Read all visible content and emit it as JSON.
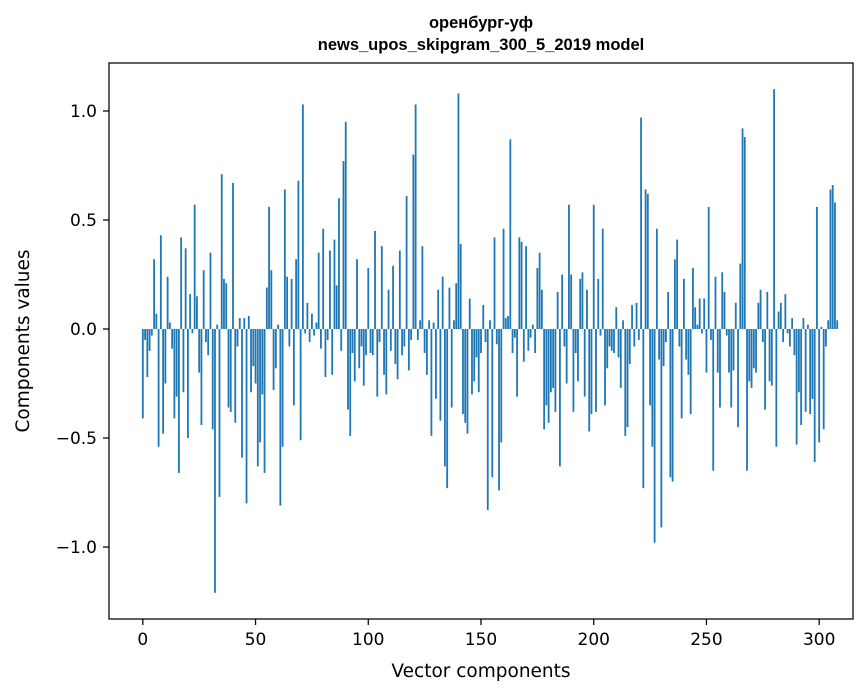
{
  "chart_data": {
    "type": "bar",
    "title": "оренбург-уф",
    "subtitle": "news_upos_skipgram_300_5_2019 model",
    "xlabel": "Vector components",
    "ylabel": "Components values",
    "xlim": [
      -15,
      315
    ],
    "ylim": [
      -1.33,
      1.22
    ],
    "xticks": [
      0,
      50,
      100,
      150,
      200,
      250,
      300
    ],
    "xtick_labels": [
      "0",
      "50",
      "100",
      "150",
      "200",
      "250",
      "300"
    ],
    "yticks": [
      -1.0,
      -0.5,
      0.0,
      0.5,
      1.0
    ],
    "ytick_labels": [
      "−1.0",
      "−0.5",
      "0.0",
      "0.5",
      "1.0"
    ],
    "bar_color": "#1f77b4",
    "grid": false,
    "legend": "none",
    "series": [
      {
        "values": [
          -0.41,
          -0.05,
          -0.22,
          -0.1,
          -0.03,
          0.32,
          0.07,
          -0.54,
          0.43,
          -0.48,
          -0.25,
          0.24,
          0.03,
          -0.09,
          -0.41,
          -0.31,
          -0.66,
          0.42,
          -0.29,
          0.37,
          -0.5,
          0.16,
          -0.02,
          0.57,
          0.15,
          -0.2,
          -0.44,
          0.27,
          -0.06,
          -0.12,
          0.35,
          -0.46,
          -1.21,
          0.02,
          -0.77,
          0.71,
          0.23,
          0.21,
          -0.36,
          -0.38,
          0.67,
          -0.43,
          -0.08,
          0.05,
          -0.59,
          0.05,
          -0.8,
          0.06,
          -0.29,
          -0.17,
          -0.25,
          -0.63,
          -0.52,
          -0.3,
          -0.66,
          0.19,
          0.56,
          0.27,
          -0.28,
          -0.18,
          0.02,
          -0.81,
          -0.54,
          0.64,
          0.24,
          -0.08,
          0.23,
          -0.35,
          0.32,
          0.68,
          -0.51,
          1.03,
          -0.02,
          0.12,
          -0.06,
          0.07,
          -0.03,
          0.03,
          0.35,
          -0.09,
          0.46,
          -0.22,
          -0.05,
          0.36,
          -0.21,
          0.41,
          0.2,
          0.6,
          -0.1,
          0.77,
          0.95,
          -0.37,
          -0.49,
          -0.11,
          -0.24,
          0.32,
          -0.18,
          -0.08,
          -0.26,
          -0.12,
          0.28,
          -0.11,
          -0.12,
          0.45,
          -0.31,
          -0.06,
          0.38,
          -0.21,
          -0.3,
          0.18,
          -0.1,
          0.29,
          -0.16,
          -0.23,
          0.36,
          -0.12,
          -0.08,
          0.61,
          -0.19,
          -0.05,
          0.8,
          1.03,
          -0.05,
          0.04,
          0.38,
          -0.11,
          -0.21,
          0.04,
          -0.49,
          0.03,
          -0.32,
          0.18,
          -0.42,
          0.24,
          -0.63,
          -0.73,
          0.19,
          -0.36,
          0.04,
          0.21,
          1.08,
          0.39,
          -0.39,
          -0.43,
          -0.48,
          0.14,
          -0.3,
          -0.24,
          -0.13,
          -0.29,
          -0.11,
          0.11,
          -0.06,
          -0.83,
          0.04,
          -0.68,
          0.42,
          -0.07,
          -0.74,
          -0.52,
          0.46,
          0.05,
          0.06,
          0.87,
          -0.11,
          -0.04,
          -0.31,
          0.42,
          0.4,
          -0.15,
          0.38,
          -0.1,
          -0.04,
          0.02,
          -0.11,
          0.28,
          0.35,
          0.18,
          -0.46,
          -0.35,
          -0.43,
          -0.29,
          -0.27,
          -0.38,
          0.17,
          -0.63,
          0.25,
          -0.08,
          -0.25,
          0.57,
          0.25,
          -0.38,
          -0.11,
          -0.24,
          0.23,
          0.26,
          -0.31,
          0.18,
          -0.47,
          -0.39,
          0.57,
          -0.38,
          0.23,
          -0.03,
          0.46,
          -0.35,
          -0.18,
          -0.08,
          -0.1,
          -0.11,
          0.1,
          -0.13,
          -0.27,
          0.04,
          -0.49,
          -0.45,
          -0.16,
          0.11,
          -0.08,
          0.12,
          -0.05,
          0.97,
          -0.73,
          0.64,
          0.62,
          -0.35,
          -0.54,
          -0.98,
          0.46,
          -0.14,
          -0.91,
          -0.17,
          -0.06,
          0.17,
          -0.68,
          -0.7,
          0.32,
          0.41,
          -0.08,
          -0.41,
          0.23,
          -0.14,
          -0.21,
          -0.39,
          0.28,
          0.1,
          0.02,
          0.14,
          -0.02,
          0.14,
          -0.2,
          0.56,
          -0.05,
          -0.65,
          0.24,
          -0.2,
          -0.36,
          0.26,
          0.17,
          -0.03,
          -0.2,
          -0.36,
          -0.19,
          0.12,
          -0.45,
          0.3,
          0.92,
          0.88,
          -0.65,
          -0.24,
          -0.27,
          -0.18,
          -0.2,
          0.12,
          0.18,
          -0.06,
          -0.37,
          0.17,
          -0.24,
          -0.26,
          1.1,
          -0.54,
          0.08,
          0.12,
          -0.06,
          0.16,
          -0.02,
          -0.08,
          0.05,
          -0.12,
          -0.53,
          -0.29,
          -0.44,
          0.05,
          -0.38,
          0.02,
          -0.39,
          -0.32,
          -0.61,
          0.56,
          -0.52,
          0.01,
          -0.46,
          -0.08,
          0.04,
          0.64,
          0.66,
          0.58,
          0.04
        ]
      }
    ]
  }
}
